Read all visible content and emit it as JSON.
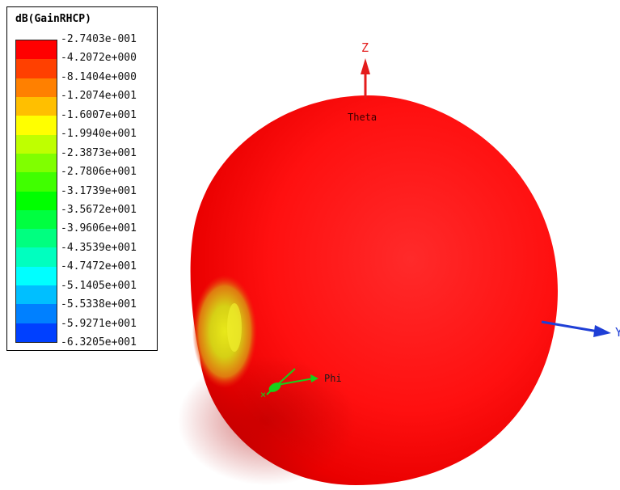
{
  "chart_data": {
    "type": "3d-radiation-pattern",
    "quantity": "dB(GainRHCP)",
    "legend": {
      "title": "dB(GainRHCP)",
      "levels": [
        "-2.7403e-001",
        "-4.2072e+000",
        "-8.1404e+000",
        "-1.2074e+001",
        "-1.6007e+001",
        "-1.9940e+001",
        "-2.3873e+001",
        "-2.7806e+001",
        "-3.1739e+001",
        "-3.5672e+001",
        "-3.9606e+001",
        "-4.3539e+001",
        "-4.7472e+001",
        "-5.1405e+001",
        "-5.5338e+001",
        "-5.9271e+001",
        "-6.3205e+001"
      ],
      "band_colors": [
        "#ff0000",
        "#ff4000",
        "#ff8000",
        "#ffbf00",
        "#ffff00",
        "#bfff00",
        "#80ff00",
        "#40ff00",
        "#00ff00",
        "#00ff40",
        "#00ff80",
        "#00ffbf",
        "#00ffff",
        "#00bfff",
        "#0080ff",
        "#0040ff"
      ]
    },
    "axes": {
      "z": "Z",
      "theta": "Theta",
      "phi": "Phi",
      "y": "Y"
    },
    "colors": {
      "pattern": "#ff1a1a",
      "z_axis": "#e41c1c",
      "y_axis": "#1f3fd6",
      "phi_axis": "#17d01a",
      "null_region": "#e5e21c"
    }
  }
}
